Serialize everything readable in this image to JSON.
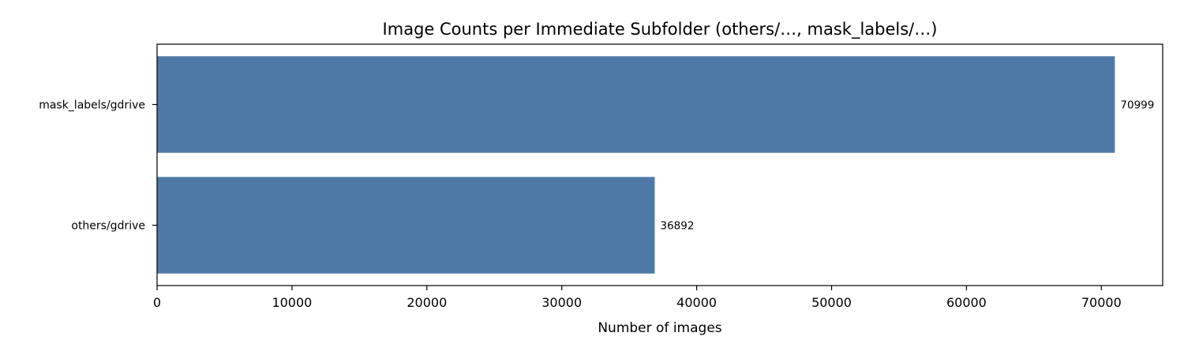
{
  "chart_data": {
    "type": "bar",
    "orientation": "horizontal",
    "title": "Image Counts per Immediate Subfolder (others/…, mask_labels/…)",
    "xlabel": "Number of images",
    "ylabel": "",
    "categories": [
      "mask_labels/gdrive",
      "others/gdrive"
    ],
    "values": [
      70999,
      36892
    ],
    "data_labels": [
      "70999",
      "36892"
    ],
    "xlim": [
      0,
      74545
    ],
    "xticks": [
      0,
      10000,
      20000,
      30000,
      40000,
      50000,
      60000,
      70000
    ],
    "xtick_labels": [
      "0",
      "10000",
      "20000",
      "30000",
      "40000",
      "50000",
      "60000",
      "70000"
    ],
    "grid": false,
    "legend": "none",
    "bar_color": "#4e79a7"
  }
}
